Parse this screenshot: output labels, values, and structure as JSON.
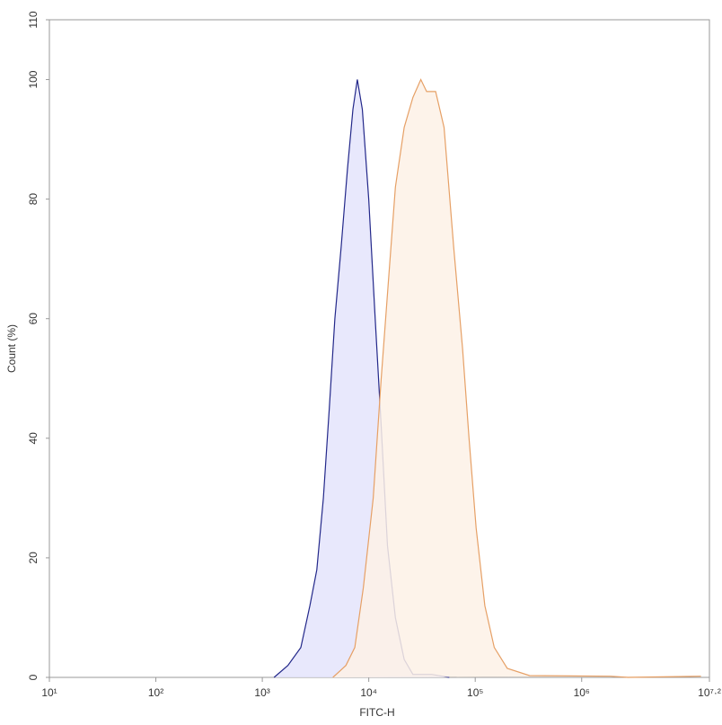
{
  "chart_data": {
    "type": "area",
    "xlabel": "FITC-H",
    "ylabel": "Count (%)",
    "xscale": "log",
    "xlim": [
      10,
      15848931.92
    ],
    "ylim": [
      0,
      110
    ],
    "xticks": [
      {
        "value": 10,
        "label": "10¹"
      },
      {
        "value": 100,
        "label": "10²"
      },
      {
        "value": 1000,
        "label": "10³"
      },
      {
        "value": 10000,
        "label": "10⁴"
      },
      {
        "value": 100000,
        "label": "10⁵"
      },
      {
        "value": 1000000,
        "label": "10⁶"
      },
      {
        "value": 15848931.92,
        "label": "10⁷·²"
      }
    ],
    "yticks": [
      0,
      20,
      40,
      60,
      80,
      100,
      110
    ],
    "series": [
      {
        "color": "#23288a",
        "fill": "#e4e4fb",
        "x": [
          1290,
          1740,
          2300,
          2800,
          3250,
          3750,
          4260,
          4800,
          5500,
          6300,
          7100,
          7800,
          8700,
          10000,
          11500,
          13100,
          15000,
          17800,
          21500,
          26000,
          39000,
          57000
        ],
        "values": [
          0,
          2,
          5,
          12,
          18,
          30,
          45,
          60,
          72,
          85,
          95,
          100,
          95,
          80,
          60,
          42,
          22,
          10,
          3,
          0.5,
          0.5,
          0
        ]
      },
      {
        "color": "#e6a066",
        "fill": "#fdf1e6",
        "x": [
          4600,
          6100,
          7400,
          8900,
          11000,
          13100,
          15100,
          17800,
          21500,
          26000,
          30800,
          35000,
          42500,
          51000,
          62800,
          76000,
          87400,
          102000,
          123000,
          151000,
          200000,
          324000,
          1860000,
          2730000,
          13200000
        ],
        "values": [
          0,
          2,
          5,
          15,
          30,
          50,
          65,
          82,
          92,
          97,
          100,
          98,
          98,
          92,
          72,
          55,
          40,
          25,
          12,
          5,
          1.5,
          0.3,
          0.2,
          0,
          0.2
        ]
      }
    ]
  }
}
